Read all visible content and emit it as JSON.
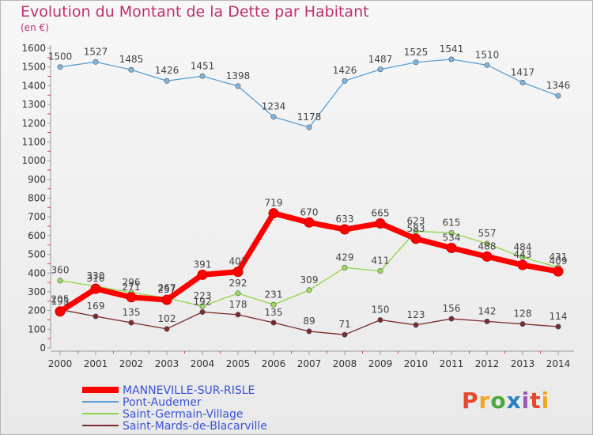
{
  "header": {
    "title": "Evolution du Montant de la Dette par Habitant",
    "subtitle": "(en €)"
  },
  "logo": {
    "text": "Proxiti",
    "colors": [
      "#e8472b",
      "#f2a51f",
      "#4fa83d",
      "#2a7fc1",
      "#9b59b6",
      "#e8472b",
      "#f2a51f"
    ]
  },
  "chart_data": {
    "type": "line",
    "title": "Evolution du Montant de la Dette par Habitant",
    "subtitle": "(en €)",
    "xlabel": "",
    "ylabel": "",
    "ylim": [
      0,
      1600
    ],
    "yticks": [
      0,
      100,
      200,
      300,
      400,
      500,
      600,
      700,
      800,
      900,
      1000,
      1100,
      1200,
      1300,
      1400,
      1500,
      1600
    ],
    "grid": false,
    "legend_position": "bottom-left",
    "x": [
      "2000",
      "2001",
      "2002",
      "2003",
      "2004",
      "2005",
      "2006",
      "2007",
      "2008",
      "2009",
      "2010",
      "2011",
      "2012",
      "2013",
      "2014"
    ],
    "series": [
      {
        "name": "Pont-Audemer",
        "color": "#5a9fd4",
        "width": 1.3,
        "marker_fill": "#7fb6e0",
        "values": [
          1500,
          1527,
          1485,
          1426,
          1451,
          1398,
          1234,
          1178,
          1426,
          1487,
          1525,
          1541,
          1510,
          1417,
          1346
        ]
      },
      {
        "name": "Saint-Germain-Village",
        "color": "#8fd44a",
        "width": 1.3,
        "marker_fill": "#9bdc5a",
        "values": [
          360,
          330,
          296,
          267,
          223,
          292,
          231,
          309,
          429,
          411,
          623,
          615,
          557,
          484,
          431
        ]
      },
      {
        "name": "Saint-Mards-de-Blacarville",
        "color": "#7a2a2a",
        "width": 1.3,
        "marker_fill": "#7a2a2a",
        "values": [
          205,
          169,
          135,
          102,
          192,
          178,
          135,
          89,
          71,
          150,
          123,
          156,
          142,
          128,
          114
        ]
      },
      {
        "name": "MANNEVILLE-SUR-RISLE",
        "color": "#ff0000",
        "width": 7,
        "marker_fill": "#ff0000",
        "values": [
          195,
          316,
          271,
          257,
          391,
          407,
          719,
          670,
          633,
          665,
          583,
          534,
          488,
          443,
          409
        ]
      }
    ],
    "legend_order": [
      "MANNEVILLE-SUR-RISLE",
      "Pont-Audemer",
      "Saint-Germain-Village",
      "Saint-Mards-de-Blacarville"
    ]
  }
}
